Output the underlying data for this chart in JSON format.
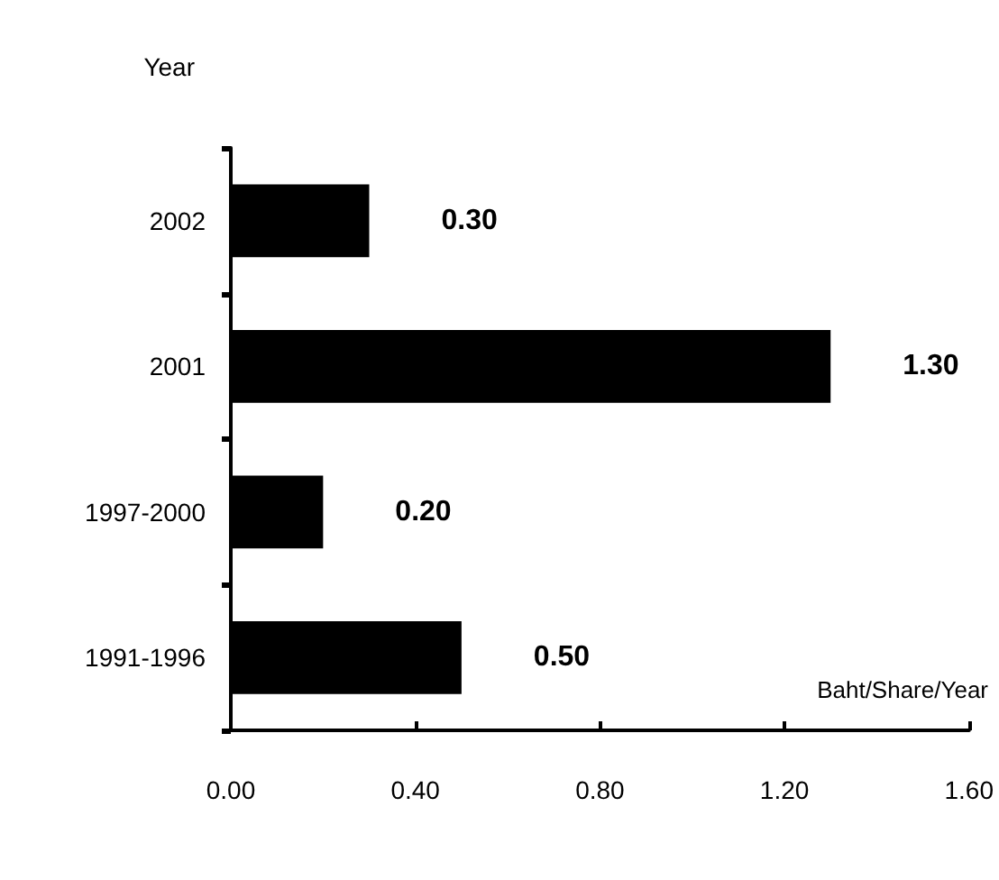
{
  "chart_data": {
    "type": "bar",
    "orientation": "horizontal",
    "ylabel": "Year",
    "xlabel": "Baht/Share/Year",
    "categories": [
      "2002",
      "2001",
      "1997-2000",
      "1991-1996"
    ],
    "values": [
      0.3,
      1.3,
      0.2,
      0.5
    ],
    "color": "#000000",
    "value_labels": [
      "0.30",
      "1.30",
      "0.20",
      "0.50"
    ],
    "xlim": [
      0,
      1.6
    ],
    "xticks": [
      {
        "value": 0,
        "label": "0.00"
      },
      {
        "value": 0.4,
        "label": "0.40"
      },
      {
        "value": 0.8,
        "label": "0.80"
      },
      {
        "value": 1.2,
        "label": "1.20"
      },
      {
        "value": 1.6,
        "label": "1.60"
      }
    ],
    "grid": false
  }
}
